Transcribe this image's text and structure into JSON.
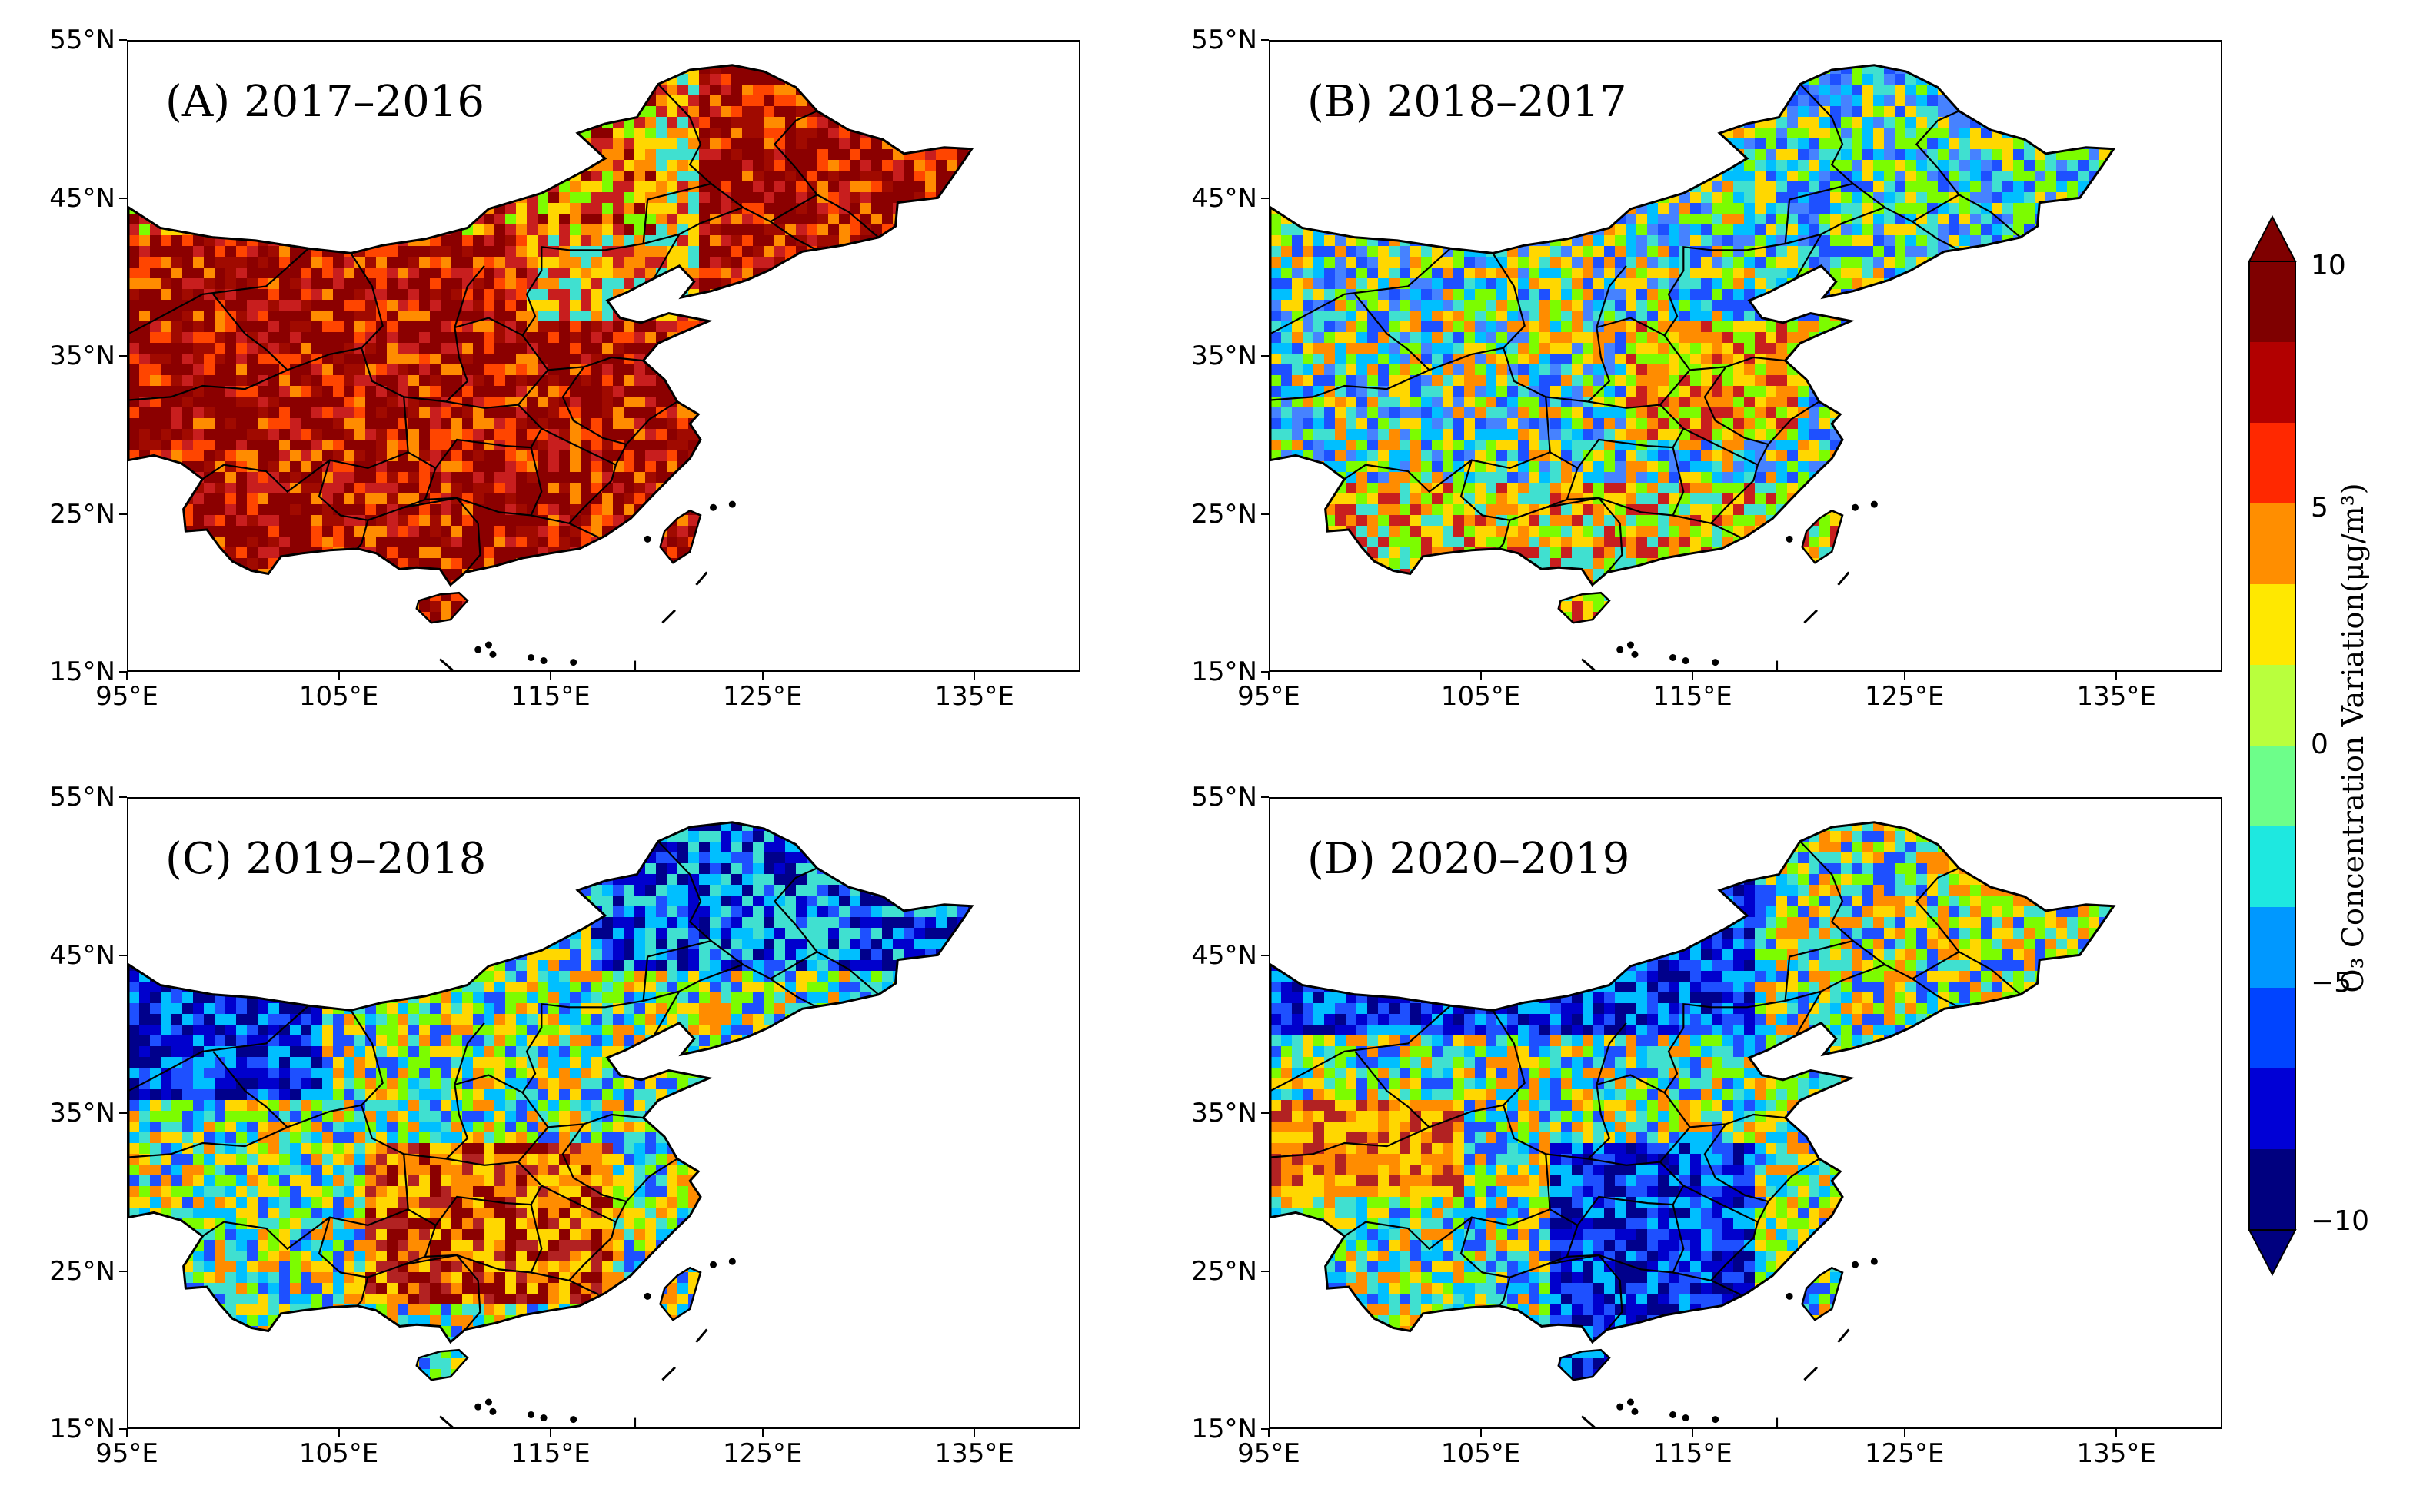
{
  "panels": [
    {
      "title": "(A) 2017–2016"
    },
    {
      "title": "(B) 2018–2017"
    },
    {
      "title": "(C) 2019–2018"
    },
    {
      "title": "(D) 2020–2019"
    }
  ],
  "axes": {
    "y_ticks": [
      "55°N",
      "45°N",
      "35°N",
      "25°N",
      "15°N"
    ],
    "x_ticks": [
      "95°E",
      "105°E",
      "115°E",
      "125°E",
      "135°E"
    ]
  },
  "colorbar": {
    "title": "O₃ Concentration Variation(μg/m³)",
    "labels": [
      "10",
      "5",
      "0",
      "−5",
      "−10"
    ],
    "range": [
      -10,
      10
    ],
    "colors": [
      "#00007f",
      "#0000d6",
      "#0044ff",
      "#0098ff",
      "#1ee8e0",
      "#6dfe8a",
      "#b9ff3d",
      "#ffe800",
      "#ff8e00",
      "#ff2800",
      "#b20000",
      "#7f0000"
    ]
  },
  "map_palettes": {
    "A": [
      "#8b0000",
      "#a00a00",
      "#c81e1e",
      "#ff4500",
      "#ff8c00",
      "#ffd700",
      "#2ecf8f",
      "#1e90ff"
    ],
    "B": [
      "#1e50ff",
      "#4682ff",
      "#00bfff",
      "#40e0d0",
      "#7cfc00",
      "#ffd700",
      "#ff8c00",
      "#c81e1e"
    ],
    "C": [
      "#00008b",
      "#0000cd",
      "#1e50ff",
      "#00bfff",
      "#40e0d0",
      "#7cfc00",
      "#ffd700",
      "#ff8c00",
      "#b22222"
    ],
    "D": [
      "#00008b",
      "#0000cd",
      "#1e50ff",
      "#00bfff",
      "#40e0d0",
      "#7cfc00",
      "#ffd700",
      "#ff8c00",
      "#b22222"
    ]
  }
}
